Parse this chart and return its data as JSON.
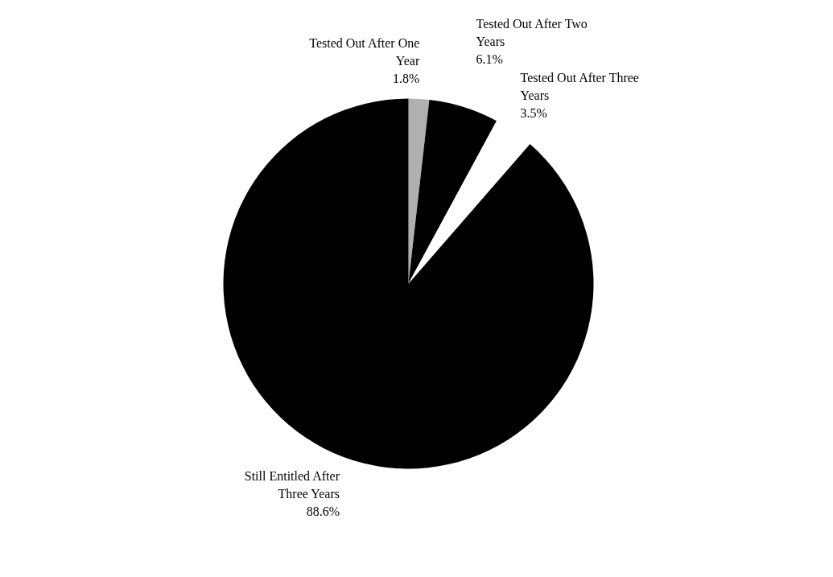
{
  "chart_data": {
    "type": "pie",
    "categories": [
      "Tested Out After One Year",
      "Tested Out After Two Years",
      "Tested Out After Three Years",
      "Still Entitled After Three Years"
    ],
    "values": [
      1.8,
      6.1,
      3.5,
      88.6
    ],
    "value_labels": [
      "1.8%",
      "6.1%",
      "3.5%",
      "88.6%"
    ],
    "colors": [
      "#b0b0b0",
      "#000000",
      "#ffffff",
      "#000000"
    ]
  }
}
